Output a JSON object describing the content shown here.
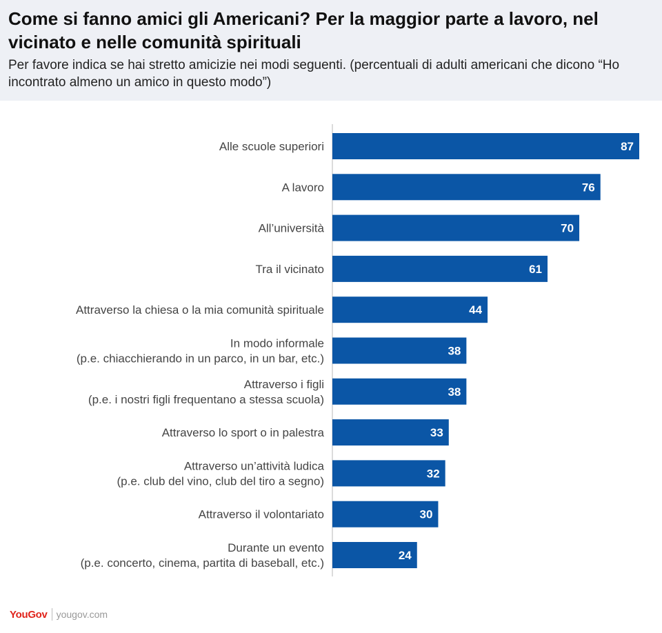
{
  "header": {
    "title": "Come si fanno amici gli Americani? Per la maggior parte a lavoro, nel vicinato e nelle comunità spirituali",
    "subtitle": "Per favore indica se hai stretto amicizie nei modi seguenti. (percentuali di adulti americani che dicono “Ho incontrato almeno un amico in questo modo”)"
  },
  "footer": {
    "brand": "YouGov",
    "site": "yougov.com"
  },
  "colors": {
    "bar": "#0b56a6",
    "axis": "#cfcfcf",
    "header_bg": "#eef0f5"
  },
  "chart_data": {
    "type": "bar",
    "orientation": "horizontal",
    "categories": [
      [
        "Alle scuole superiori"
      ],
      [
        "A lavoro"
      ],
      [
        "All’università"
      ],
      [
        "Tra il vicinato"
      ],
      [
        "Attraverso la chiesa o la mia comunità spirituale"
      ],
      [
        "In modo informale",
        "(p.e. chiacchierando in un parco, in un bar, etc.)"
      ],
      [
        "Attraverso i figli",
        "(p.e. i nostri figli frequentano a stessa scuola)"
      ],
      [
        "Attraverso lo sport o in palestra"
      ],
      [
        "Attraverso un’attività ludica",
        "(p.e. club del vino, club del tiro a segno)"
      ],
      [
        "Attraverso il volontariato"
      ],
      [
        "Durante un evento",
        "(p.e. concerto, cinema, partita di baseball, etc.)"
      ]
    ],
    "values": [
      87,
      76,
      70,
      61,
      44,
      38,
      38,
      33,
      32,
      30,
      24
    ],
    "xlim": [
      0,
      87
    ],
    "grid": false,
    "legend": false
  }
}
